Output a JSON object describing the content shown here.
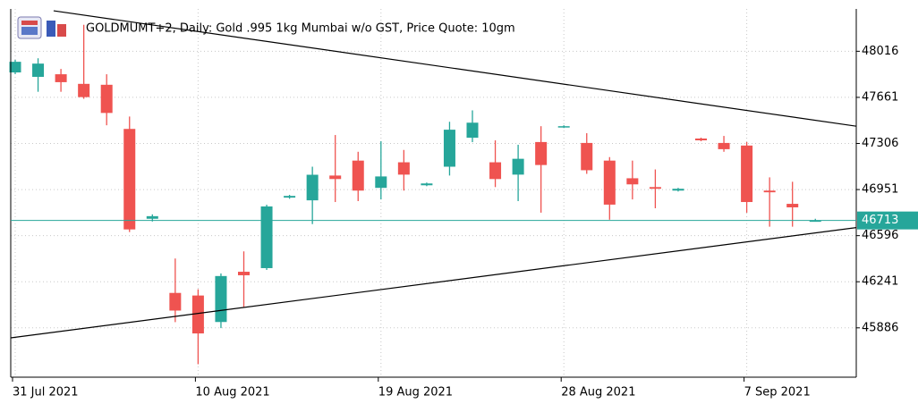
{
  "chart_data": {
    "type": "candlestick",
    "title": "GOLDMUMT+2, Daily:  Gold .995 1kg Mumbai w/o GST, Price Quote: 10gm",
    "categories": [
      "31 Jul 2021",
      null,
      null,
      null,
      null,
      null,
      null,
      null,
      "10 Aug 2021",
      null,
      null,
      null,
      null,
      null,
      null,
      null,
      "19 Aug 2021",
      null,
      null,
      null,
      null,
      null,
      null,
      null,
      "28 Aug 2021",
      null,
      null,
      null,
      null,
      null,
      null,
      null,
      "7 Sep 2021",
      null,
      null,
      null
    ],
    "open": [
      47853,
      47819,
      47839,
      47765,
      47758,
      47418,
      46726,
      46155,
      46135,
      45931,
      46318,
      46346,
      46889,
      46868,
      47059,
      47174,
      46964,
      47161,
      46984,
      47127,
      47350,
      47161,
      47066,
      47317,
      47432,
      47310,
      47174,
      47038,
      46970,
      46943,
      47344,
      47310,
      47290,
      46943,
      46841,
      46709
    ],
    "high": [
      47950,
      47962,
      47880,
      48220,
      47839,
      47513,
      46760,
      46420,
      46183,
      46305,
      46475,
      46834,
      46910,
      47127,
      47371,
      47242,
      47323,
      47256,
      47005,
      47473,
      47561,
      47330,
      47296,
      47439,
      47446,
      47385,
      47201,
      47174,
      47106,
      46964,
      47351,
      47364,
      47317,
      47045,
      47011,
      46726
    ],
    "low": [
      47840,
      47704,
      47704,
      47650,
      47446,
      46624,
      46705,
      45930,
      45606,
      45884,
      46047,
      46332,
      46880,
      46685,
      46855,
      46862,
      46875,
      46943,
      46977,
      47059,
      47316,
      46970,
      46862,
      46773,
      47425,
      47072,
      46719,
      46875,
      46807,
      46936,
      47323,
      47242,
      46773,
      46665,
      46665,
      46705
    ],
    "close": [
      47935,
      47921,
      47778,
      47663,
      47541,
      46644,
      46746,
      46019,
      45843,
      46285,
      46291,
      46821,
      46902,
      47065,
      47032,
      46943,
      47052,
      47066,
      46998,
      47412,
      47466,
      47032,
      47188,
      47140,
      47439,
      47100,
      46835,
      46991,
      46957,
      46957,
      47330,
      47262,
      46855,
      46930,
      46814,
      46713
    ],
    "up_color": "#26a69a",
    "down_color": "#ef5350",
    "last_price": 46713,
    "trendlines": [
      {
        "x": [
          1.68,
          36.79
        ],
        "y": [
          48328,
          47439
        ]
      },
      {
        "x": [
          -0.2,
          36.79
        ],
        "y": [
          45809,
          46658
        ]
      }
    ],
    "ylim": [
      45506,
      48342
    ],
    "yticks": [
      48016,
      47661,
      47306,
      46951,
      46596,
      46241,
      45886
    ],
    "grid": true
  }
}
